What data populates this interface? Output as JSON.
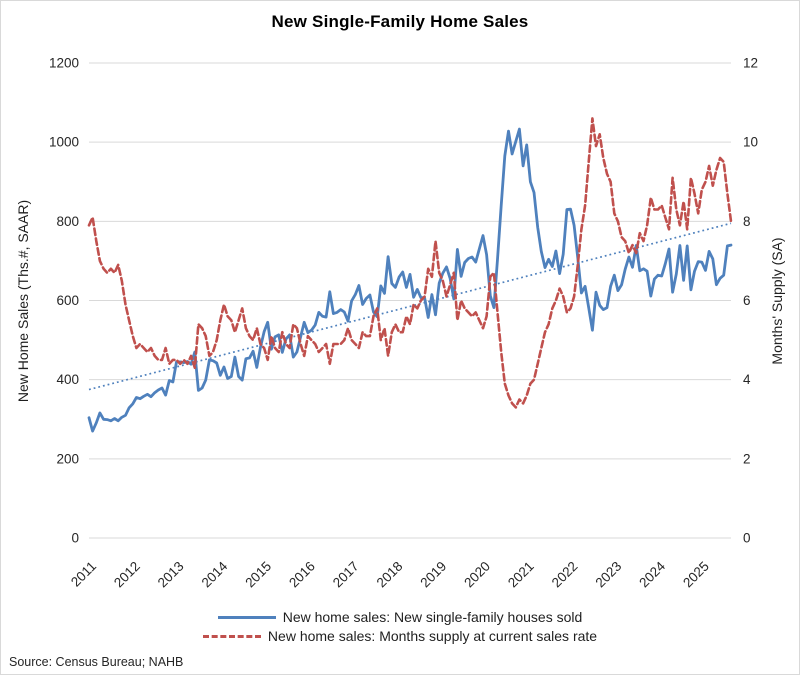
{
  "title": "New Single-Family Home Sales",
  "source": "Source: Census Bureau; NAHB",
  "colors": {
    "sales_line": "#4F81BD",
    "supply_line": "#C0504D",
    "trend_line": "#4F81BD",
    "gridline": "#D9D9D9",
    "text": "#262626"
  },
  "legend": [
    {
      "label": "New home sales: New single-family houses sold",
      "style": "solid",
      "color": "#4F81BD"
    },
    {
      "label": "New home sales: Months supply at current sales rate",
      "style": "dashed",
      "color": "#C0504D"
    }
  ],
  "chart_data": {
    "type": "line",
    "title": "New Single-Family Home Sales",
    "x_unit": "month",
    "x_start": "2011-01",
    "x_end": "2025-09",
    "x_tick_labels": [
      "2011",
      "2012",
      "2013",
      "2014",
      "2015",
      "2016",
      "2017",
      "2018",
      "2019",
      "2020",
      "2021",
      "2022",
      "2023",
      "2024",
      "2025"
    ],
    "grid": true,
    "legend_position": "bottom",
    "left_axis": {
      "label": "New Home Sales (Ths.#, SAAR)",
      "min": 0,
      "max": 1200,
      "tick_step": 200,
      "ticks": [
        0,
        200,
        400,
        600,
        800,
        1000,
        1200
      ]
    },
    "right_axis": {
      "label": "Months' Supply (SA)",
      "min": 0,
      "max": 12,
      "tick_step": 2,
      "ticks": [
        0,
        2,
        4,
        6,
        8,
        10,
        12
      ]
    },
    "series": [
      {
        "name": "New home sales: New single-family houses sold",
        "axis": "left",
        "style": "solid",
        "color": "#4F81BD",
        "values": [
          304,
          270,
          291,
          316,
          300,
          299,
          296,
          302,
          296,
          305,
          310,
          329,
          339,
          355,
          352,
          358,
          363,
          357,
          367,
          374,
          379,
          361,
          398,
          394,
          445,
          445,
          443,
          446,
          439,
          470,
          373,
          379,
          399,
          450,
          448,
          442,
          411,
          432,
          403,
          408,
          457,
          408,
          399,
          453,
          455,
          472,
          431,
          481,
          521,
          545,
          477,
          508,
          513,
          469,
          503,
          513,
          457,
          470,
          508,
          545,
          519,
          525,
          538,
          570,
          560,
          558,
          622,
          567,
          570,
          577,
          571,
          548,
          599,
          615,
          638,
          590,
          605,
          614,
          571,
          559,
          637,
          618,
          711,
          643,
          633,
          659,
          672,
          633,
          666,
          608,
          628,
          607,
          607,
          557,
          615,
          564,
          644,
          669,
          685,
          656,
          604,
          729,
          661,
          696,
          706,
          710,
          697,
          730,
          764,
          716,
          612,
          582,
          704,
          840,
          965,
          1028,
          970,
          1002,
          1033,
          940,
          993,
          900,
          873,
          785,
          724,
          683,
          704,
          686,
          725,
          668,
          717,
          830,
          831,
          790,
          707,
          619,
          636,
          582,
          525,
          621,
          588,
          577,
          582,
          636,
          664,
          625,
          640,
          679,
          710,
          684,
          739,
          675,
          680,
          674,
          611,
          654,
          664,
          662,
          693,
          730,
          621,
          667,
          739,
          651,
          738,
          627,
          674,
          698,
          697,
          676,
          724,
          705,
          640,
          656,
          664,
          738,
          740
        ]
      },
      {
        "name": "New home sales: Months supply at current sales rate",
        "axis": "right",
        "style": "dashed",
        "color": "#C0504D",
        "values": [
          7.9,
          8.1,
          7.5,
          7.0,
          6.8,
          6.7,
          6.8,
          6.7,
          6.9,
          6.5,
          5.9,
          5.5,
          5.1,
          4.8,
          4.9,
          4.8,
          4.7,
          4.8,
          4.6,
          4.5,
          4.5,
          4.8,
          4.4,
          4.5,
          4.5,
          4.4,
          4.5,
          4.4,
          4.6,
          4.3,
          5.4,
          5.3,
          5.1,
          4.6,
          4.7,
          5.0,
          5.5,
          5.9,
          5.6,
          5.5,
          5.2,
          5.5,
          5.8,
          5.3,
          5.1,
          5.0,
          5.3,
          4.9,
          4.8,
          4.5,
          5.1,
          4.8,
          4.7,
          5.2,
          4.9,
          4.8,
          5.4,
          5.3,
          4.9,
          4.6,
          5.1,
          5.0,
          4.9,
          4.7,
          4.8,
          4.9,
          4.4,
          4.9,
          4.9,
          4.9,
          5.0,
          5.3,
          5.0,
          4.9,
          4.8,
          5.2,
          5.1,
          5.1,
          5.6,
          5.8,
          5.0,
          5.3,
          4.6,
          5.2,
          5.4,
          5.2,
          5.2,
          5.6,
          5.4,
          5.9,
          5.8,
          6.0,
          6.1,
          6.8,
          6.6,
          7.5,
          6.7,
          6.5,
          6.1,
          6.4,
          6.7,
          5.5,
          6.0,
          5.8,
          5.7,
          5.6,
          5.7,
          5.5,
          5.3,
          5.6,
          6.6,
          6.7,
          5.7,
          4.7,
          3.9,
          3.6,
          3.4,
          3.3,
          3.5,
          3.4,
          3.6,
          3.9,
          4.0,
          4.4,
          4.8,
          5.2,
          5.4,
          5.8,
          6.0,
          6.3,
          6.1,
          5.7,
          5.8,
          6.1,
          6.9,
          7.8,
          8.4,
          9.5,
          10.6,
          9.9,
          10.2,
          9.6,
          9.2,
          9.0,
          8.2,
          8.0,
          7.6,
          7.5,
          7.2,
          7.4,
          7.2,
          7.7,
          7.5,
          7.9,
          8.6,
          8.3,
          8.3,
          8.4,
          8.1,
          7.8,
          9.1,
          8.3,
          7.9,
          8.5,
          7.8,
          9.1,
          8.7,
          8.2,
          8.8,
          9.0,
          9.4,
          8.9,
          9.3,
          9.6,
          9.5,
          8.7,
          8.0
        ]
      },
      {
        "name": "Linear trend (new single-family houses sold)",
        "axis": "left",
        "style": "dotted",
        "color": "#4F81BD",
        "trend": true,
        "start": 375,
        "end": 795
      }
    ]
  }
}
